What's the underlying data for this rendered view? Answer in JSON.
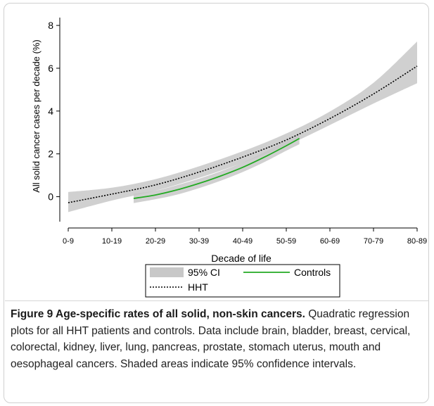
{
  "chart_data": {
    "type": "line",
    "xlabel": "Decade of life",
    "ylabel": "All solid cancer cases per decade (%)",
    "categories": [
      "0-9",
      "10-19",
      "20-29",
      "30-39",
      "40-49",
      "50-59",
      "60-69",
      "70-79",
      "80-89"
    ],
    "yticks": [
      0,
      2,
      4,
      6,
      8
    ],
    "ylim": [
      -1.1,
      8.3
    ],
    "series": [
      {
        "name": "HHT",
        "style": "dotted",
        "color": "#000000",
        "x": [
          0,
          1,
          2,
          3,
          4,
          5,
          6,
          7,
          8
        ],
        "values": [
          -0.28,
          0.12,
          0.55,
          1.15,
          1.85,
          2.65,
          3.65,
          4.8,
          6.1
        ]
      },
      {
        "name": "Controls",
        "style": "solid",
        "color": "#22aa22",
        "x": [
          1.5,
          2,
          2.5,
          3,
          3.5,
          4,
          4.5,
          5,
          5.3
        ],
        "values": [
          -0.08,
          0.08,
          0.32,
          0.62,
          0.97,
          1.37,
          1.85,
          2.38,
          2.72
        ]
      },
      {
        "name": "95% CI",
        "style": "band",
        "color": "#c8c8c8",
        "x": [
          0,
          1,
          2,
          3,
          4,
          5,
          6,
          7,
          8
        ],
        "lower": [
          -0.72,
          -0.18,
          0.28,
          0.88,
          1.58,
          2.38,
          3.35,
          4.35,
          5.3
        ],
        "upper": [
          0.22,
          0.42,
          0.82,
          1.42,
          2.12,
          2.95,
          3.98,
          5.32,
          7.25
        ]
      },
      {
        "name": "Controls CI",
        "style": "band",
        "color": "#c8c8c8",
        "x": [
          1.5,
          2,
          2.5,
          3,
          3.5,
          4,
          4.5,
          5,
          5.3
        ],
        "lower": [
          -0.3,
          -0.12,
          0.1,
          0.4,
          0.75,
          1.15,
          1.62,
          2.15,
          2.45
        ],
        "upper": [
          0.14,
          0.28,
          0.54,
          0.84,
          1.19,
          1.59,
          2.08,
          2.62,
          2.98
        ]
      }
    ],
    "legend": {
      "placement": "bottom",
      "entries": [
        {
          "label": "95% CI",
          "kind": "band"
        },
        {
          "label": "Controls",
          "kind": "green-line"
        },
        {
          "label": "HHT",
          "kind": "dotted-line"
        }
      ]
    },
    "grid": false
  },
  "caption": {
    "title": "Figure 9 Age-specific rates of all solid, non-skin cancers.",
    "body": " Quadratic regression plots for all HHT patients and controls. Data include brain, bladder, breast, cervical, colorectal, kidney, liver, lung, pancreas, prostate, stomach uterus, mouth and oesophageal cancers. Shaded areas indicate 95% confidence intervals."
  }
}
